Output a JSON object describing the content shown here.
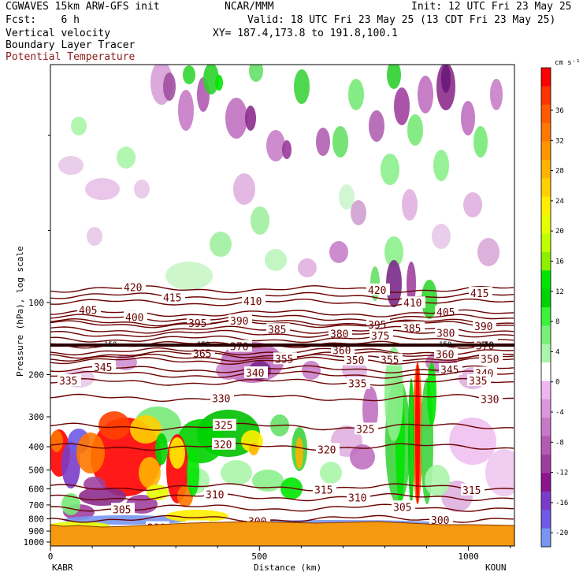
{
  "header": {
    "model": "CGWAVES 15km ARW-GFS init",
    "org": "NCAR/MMM",
    "init": "Init: 12 UTC Fri 23 May 25",
    "fcst": "Fcst:    6 h",
    "valid": "Valid: 18 UTC Fri 23 May 25 (13 CDT Fri 23 May 25)",
    "field1": "Vertical velocity",
    "field2": "Boundary Layer Tracer",
    "field3": "Potential Temperature",
    "xy": "XY= 187.4,173.8 to 191.8,100.1"
  },
  "colors": {
    "theta_contour": "#6b0000",
    "terrain": "#f59a10",
    "field3_text": "#8b1a1a"
  },
  "chart_data": {
    "type": "cross-section",
    "xlabel": "Distance (km)",
    "ylabel": "Pressure (hPa), log scale",
    "x_ticks": [
      "0",
      "500",
      "1000"
    ],
    "x_endpoints": [
      "KABR",
      "KOUN"
    ],
    "xlim": [
      0,
      1110
    ],
    "y_scale": "log",
    "y_ticks": [
      "100",
      "200",
      "300",
      "400",
      "500",
      "600",
      "700",
      "800",
      "900",
      "1000"
    ],
    "colorbar": {
      "units": "cm s⁻¹",
      "labels": [
        "36",
        "32",
        "28",
        "24",
        "20",
        "16",
        "12",
        "8",
        "4",
        "0",
        "-4",
        "-8",
        "-12",
        "-16",
        "-20"
      ],
      "colors": [
        "#ff0000",
        "#ff3300",
        "#ff5a00",
        "#ff7800",
        "#ff9600",
        "#ffb400",
        "#ffd000",
        "#ffee00",
        "#e6ff00",
        "#c0ff00",
        "#8cf000",
        "#00e600",
        "#00d200",
        "#3cf03c",
        "#78f078",
        "#aaf5aa",
        "#ffffff",
        "#f0b4f0",
        "#dc96dc",
        "#c878c8",
        "#b45ab4",
        "#a03ca0",
        "#8c148c",
        "#7a3cc8",
        "#6e5ae6",
        "#7896f0"
      ]
    },
    "theta_contours": [
      {
        "value": "420",
        "p": 88,
        "labels": [
          [
            170,
            "420"
          ],
          [
            480,
            "420"
          ]
        ]
      },
      {
        "value": "415",
        "p": 94,
        "labels": [
          [
            220,
            "415"
          ],
          [
            610,
            "415"
          ]
        ]
      },
      {
        "value": "410",
        "p": 100,
        "labels": [
          [
            322,
            "410"
          ],
          [
            525,
            "410"
          ]
        ]
      },
      {
        "value": "405",
        "p": 111,
        "labels": [
          [
            113,
            "405"
          ],
          [
            567,
            "405"
          ]
        ]
      },
      {
        "value": "400",
        "p": 116,
        "labels": [
          [
            172,
            "400"
          ]
        ]
      },
      {
        "value": "395",
        "p": 121,
        "labels": [
          [
            252,
            "395"
          ],
          [
            480,
            "395"
          ]
        ]
      },
      {
        "value": "390",
        "p": 123,
        "labels": [
          [
            305,
            "390"
          ],
          [
            615,
            "390"
          ]
        ]
      },
      {
        "value": "385",
        "p": 130,
        "labels": [
          [
            353,
            "385"
          ],
          [
            524,
            "385"
          ]
        ]
      },
      {
        "value": "380",
        "p": 135,
        "labels": [
          [
            432,
            "380"
          ],
          [
            567,
            "380"
          ]
        ]
      },
      {
        "value": "375",
        "p": 142,
        "labels": [
          [
            484,
            "375"
          ]
        ]
      },
      {
        "value": "370",
        "p": 150,
        "labels": [
          [
            305,
            "370"
          ],
          [
            617,
            "370"
          ]
        ]
      },
      {
        "value": "365",
        "p": 165,
        "labels": [
          [
            258,
            "365"
          ]
        ]
      },
      {
        "value": "360",
        "p": 160,
        "labels": [
          [
            435,
            "360"
          ],
          [
            566,
            "360"
          ]
        ]
      },
      {
        "value": "355",
        "p": 170,
        "labels": [
          [
            362,
            "355"
          ],
          [
            496,
            "355"
          ]
        ]
      },
      {
        "value": "350",
        "p": 175,
        "labels": [
          [
            452,
            "350"
          ],
          [
            623,
            "350"
          ]
        ]
      },
      {
        "value": "345",
        "p": 190,
        "labels": [
          [
            132,
            "345"
          ],
          [
            572,
            "345"
          ]
        ]
      },
      {
        "value": "340",
        "p": 200,
        "labels": [
          [
            325,
            "340"
          ],
          [
            616,
            "340"
          ]
        ]
      },
      {
        "value": "335",
        "p": 215,
        "labels": [
          [
            88,
            "335"
          ],
          [
            455,
            "335"
          ],
          [
            608,
            "335"
          ]
        ]
      },
      {
        "value": "330",
        "p": 250,
        "labels": [
          [
            282,
            "330"
          ],
          [
            623,
            "330"
          ]
        ]
      },
      {
        "value": "325",
        "p": 330,
        "labels": [
          [
            285,
            "325"
          ],
          [
            465,
            "325"
          ]
        ]
      },
      {
        "value": "320",
        "p": 400,
        "labels": [
          [
            284,
            "320"
          ],
          [
            416,
            "320"
          ]
        ]
      },
      {
        "value": "315",
        "p": 590,
        "labels": [
          [
            412,
            "315"
          ],
          [
            600,
            "315"
          ]
        ]
      },
      {
        "value": "310",
        "p": 650,
        "labels": [
          [
            274,
            "310"
          ],
          [
            455,
            "310"
          ]
        ]
      },
      {
        "value": "305",
        "p": 720,
        "labels": [
          [
            156,
            "305"
          ],
          [
            512,
            "305"
          ]
        ]
      },
      {
        "value": "300",
        "p": 800,
        "labels": [
          [
            328,
            "300"
          ],
          [
            560,
            "300"
          ]
        ]
      },
      {
        "value": "295",
        "p": 870,
        "labels": [
          [
            251,
            "295"
          ]
        ]
      },
      {
        "value": "290",
        "p": 900,
        "labels": [
          [
            200,
            "290"
          ]
        ]
      }
    ],
    "tropopause_labels": [
      "150",
      "150",
      "150",
      "150"
    ]
  }
}
